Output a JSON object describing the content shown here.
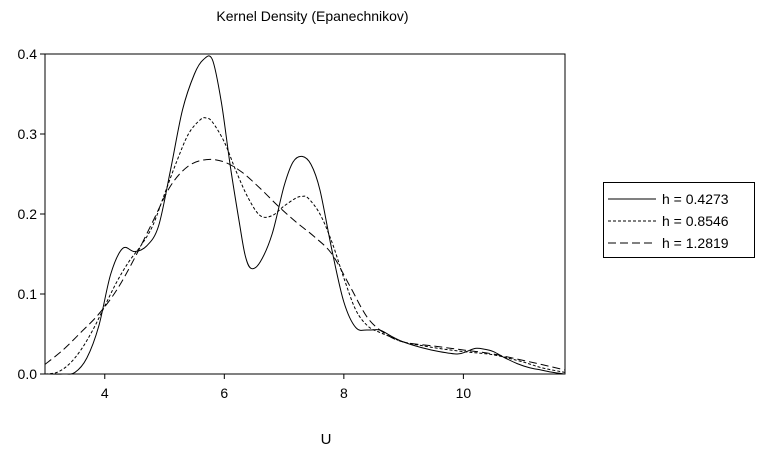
{
  "chart_data": {
    "type": "line",
    "title": "Kernel Density (Epanechnikov)",
    "xlabel": "U",
    "ylabel": "",
    "xlim": [
      3.0,
      11.7
    ],
    "ylim": [
      0.0,
      0.4
    ],
    "xticks": [
      4,
      6,
      8,
      10
    ],
    "yticks": [
      0.0,
      0.1,
      0.2,
      0.3,
      0.4
    ],
    "xtick_labels": [
      "4",
      "6",
      "8",
      "10"
    ],
    "ytick_labels": [
      "0.0",
      "0.1",
      "0.2",
      "0.3",
      "0.4"
    ],
    "grid": false,
    "legend_position": "right",
    "series": [
      {
        "name": "h = 0.4273",
        "style": "solid",
        "x": [
          3.0,
          3.3,
          3.5,
          3.7,
          3.9,
          4.1,
          4.3,
          4.5,
          4.7,
          4.9,
          5.1,
          5.3,
          5.5,
          5.65,
          5.8,
          5.95,
          6.1,
          6.25,
          6.35,
          6.45,
          6.6,
          6.8,
          7.0,
          7.15,
          7.3,
          7.45,
          7.6,
          7.8,
          8.0,
          8.2,
          8.4,
          8.6,
          8.8,
          9.0,
          9.3,
          9.6,
          9.9,
          10.05,
          10.2,
          10.35,
          10.5,
          10.7,
          10.9,
          11.1,
          11.3,
          11.5,
          11.7
        ],
        "y": [
          0.0,
          0.0,
          0.002,
          0.02,
          0.06,
          0.125,
          0.157,
          0.153,
          0.16,
          0.185,
          0.255,
          0.33,
          0.375,
          0.393,
          0.393,
          0.34,
          0.26,
          0.19,
          0.148,
          0.132,
          0.14,
          0.175,
          0.235,
          0.265,
          0.272,
          0.262,
          0.23,
          0.155,
          0.09,
          0.058,
          0.055,
          0.055,
          0.047,
          0.04,
          0.033,
          0.028,
          0.025,
          0.028,
          0.032,
          0.031,
          0.028,
          0.02,
          0.013,
          0.008,
          0.005,
          0.002,
          0.0
        ]
      },
      {
        "name": "h = 0.8546",
        "style": "dotted",
        "x": [
          3.0,
          3.2,
          3.4,
          3.6,
          3.8,
          4.0,
          4.2,
          4.4,
          4.6,
          4.8,
          5.0,
          5.2,
          5.4,
          5.6,
          5.7,
          5.8,
          6.0,
          6.2,
          6.4,
          6.6,
          6.8,
          7.0,
          7.2,
          7.3,
          7.4,
          7.6,
          7.8,
          8.0,
          8.2,
          8.4,
          8.6,
          8.8,
          9.0,
          9.5,
          10.0,
          10.5,
          11.0,
          11.3,
          11.7
        ],
        "y": [
          0.0,
          0.002,
          0.012,
          0.03,
          0.055,
          0.085,
          0.115,
          0.14,
          0.16,
          0.185,
          0.225,
          0.265,
          0.3,
          0.318,
          0.32,
          0.315,
          0.29,
          0.253,
          0.22,
          0.198,
          0.198,
          0.21,
          0.22,
          0.222,
          0.22,
          0.2,
          0.165,
          0.12,
          0.08,
          0.06,
          0.052,
          0.046,
          0.04,
          0.033,
          0.028,
          0.024,
          0.015,
          0.008,
          0.002
        ]
      },
      {
        "name": "h = 1.2819",
        "style": "dashed",
        "x": [
          3.0,
          3.3,
          3.6,
          3.9,
          4.2,
          4.5,
          4.8,
          5.1,
          5.4,
          5.7,
          6.0,
          6.3,
          6.6,
          6.9,
          7.2,
          7.5,
          7.8,
          8.1,
          8.4,
          8.7,
          9.0,
          9.5,
          10.0,
          10.5,
          11.0,
          11.3,
          11.7
        ],
        "y": [
          0.012,
          0.03,
          0.052,
          0.075,
          0.105,
          0.145,
          0.19,
          0.235,
          0.26,
          0.268,
          0.265,
          0.252,
          0.232,
          0.21,
          0.19,
          0.172,
          0.15,
          0.11,
          0.07,
          0.05,
          0.04,
          0.035,
          0.03,
          0.025,
          0.017,
          0.012,
          0.005
        ]
      }
    ]
  }
}
